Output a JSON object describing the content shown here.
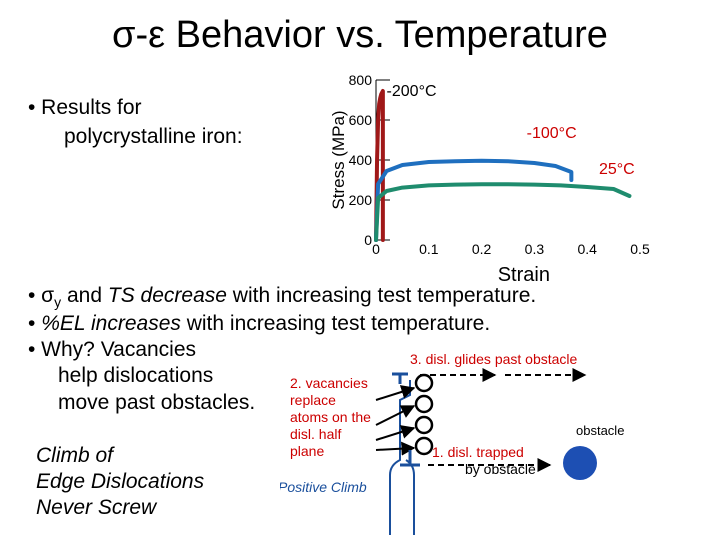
{
  "slide": {
    "title": "σ-ε Behavior vs. Temperature",
    "bullet_results_line1": "• Results for",
    "bullet_results_line2": "polycrystalline iron:",
    "bullet1_prefix": "• σ",
    "bullet1_sub": "y",
    "bullet1_mid1": " and ",
    "bullet1_ts": "TS decrease",
    "bullet1_rest": " with increasing test temperature.",
    "bullet2_prefix": "• ",
    "bullet2_el": "%EL increases",
    "bullet2_rest": " with increasing test temperature.",
    "bullet3_line1": "• Why?  Vacancies",
    "bullet3_line2": "help dislocations",
    "bullet3_line3": "move past obstacles.",
    "climb_line1": "Climb of",
    "climb_line2": "Edge Dislocations",
    "climb_line3": "Never Screw"
  },
  "diagram": {
    "step3": "3.  disl. glides past obstacle",
    "step2_lines": [
      "2. vacancies",
      "replace",
      "atoms on the",
      "disl. half",
      "plane"
    ],
    "step1_line1": "1.  disl. trapped",
    "step1_line2": "by obstacle",
    "obstacle_label": "obstacle",
    "positive_climb": "Positive Climb",
    "colors": {
      "obstacle": "#1d4fb3",
      "arrow": "#1a4f9c",
      "vacancy": "#000000"
    }
  },
  "chart_data": {
    "type": "line",
    "xlabel": "Strain",
    "ylabel": "Stress (MPa)",
    "xlim": [
      0,
      0.5
    ],
    "ylim": [
      0,
      800
    ],
    "x_ticks": [
      0,
      0.1,
      0.2,
      0.3,
      0.4,
      0.5
    ],
    "x_tick_labels": [
      "0",
      "0.1",
      "0.2",
      "0.3",
      "0.4",
      "0.5"
    ],
    "y_ticks": [
      0,
      200,
      400,
      600,
      800
    ],
    "y_tick_labels": [
      "0",
      "200",
      "400",
      "600",
      "800"
    ],
    "series": [
      {
        "name": "-200°C",
        "color": "#a01818",
        "x": [
          0,
          0.002,
          0.004,
          0.006,
          0.008,
          0.01,
          0.012,
          0.013,
          0.013
        ],
        "y": [
          0,
          400,
          600,
          680,
          710,
          730,
          740,
          745,
          0
        ]
      },
      {
        "name": "-100°C",
        "color": "#1f6fbf",
        "x": [
          0,
          0.004,
          0.02,
          0.05,
          0.1,
          0.15,
          0.2,
          0.25,
          0.3,
          0.34,
          0.37,
          0.37
        ],
        "y": [
          0,
          280,
          345,
          375,
          390,
          394,
          396,
          394,
          385,
          370,
          340,
          300
        ]
      },
      {
        "name": "25°C",
        "color": "#1f8c6e",
        "x": [
          0,
          0.004,
          0.02,
          0.05,
          0.1,
          0.15,
          0.2,
          0.25,
          0.3,
          0.35,
          0.4,
          0.45,
          0.48
        ],
        "y": [
          0,
          210,
          245,
          262,
          273,
          277,
          279,
          279,
          277,
          273,
          265,
          255,
          220
        ]
      }
    ]
  }
}
